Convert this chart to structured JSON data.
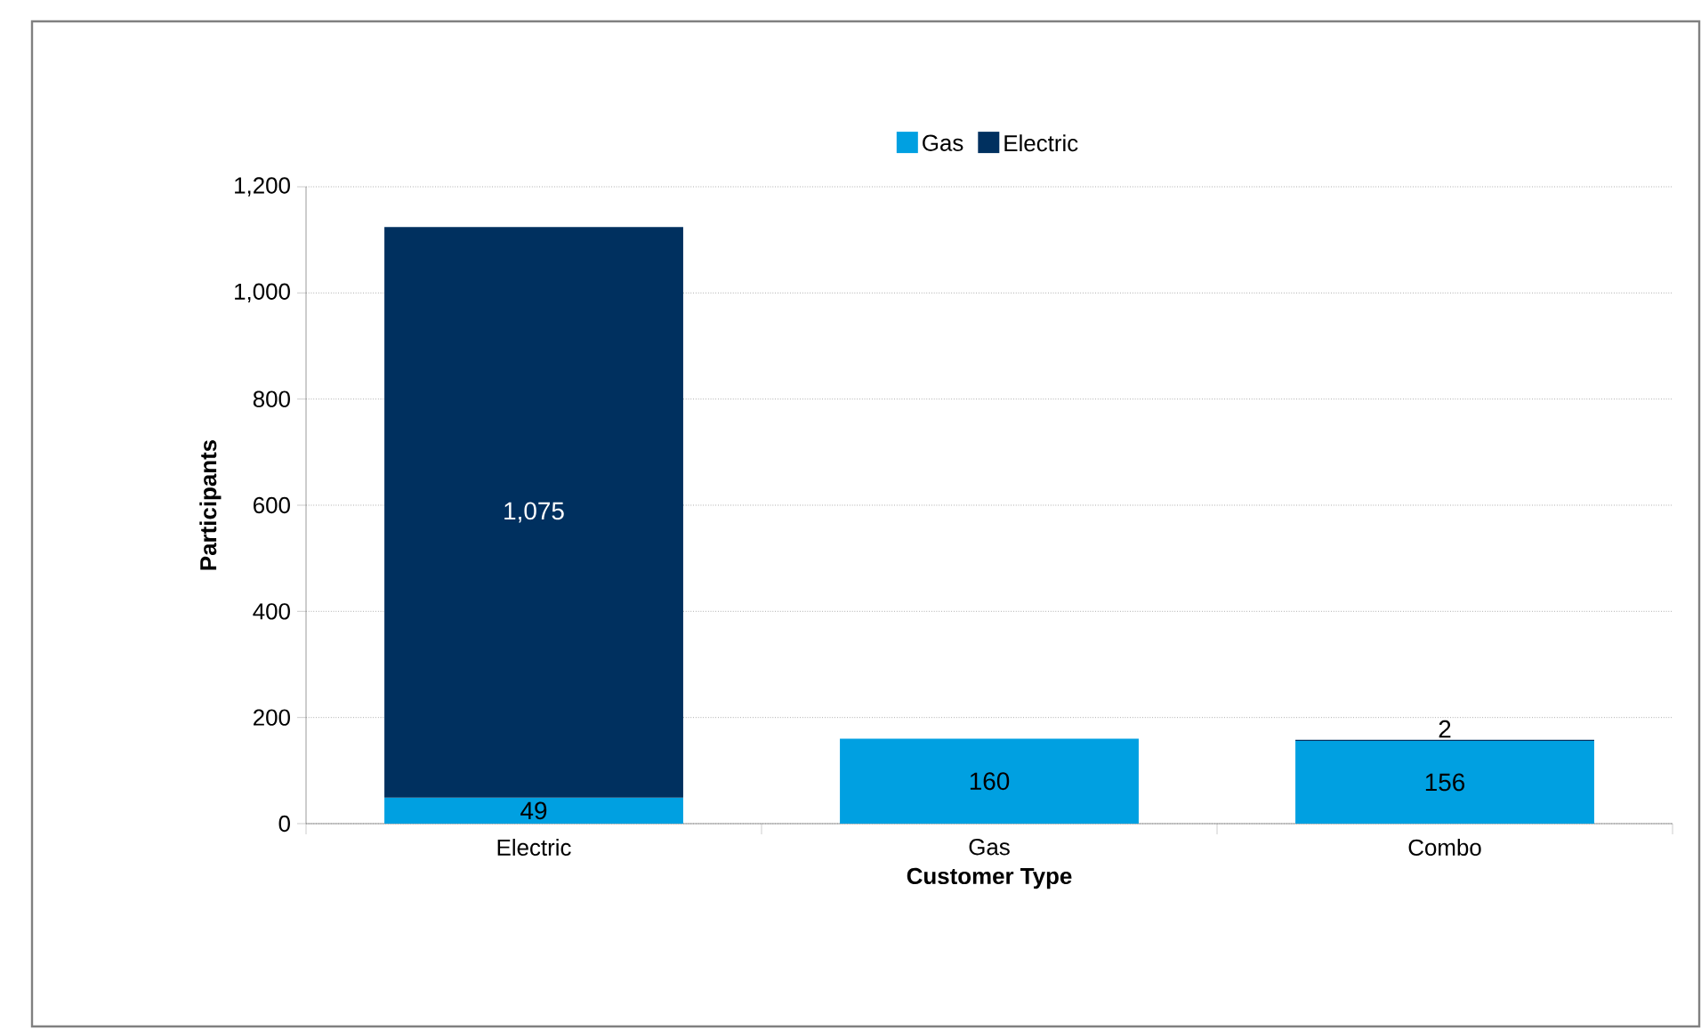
{
  "chart_data": {
    "type": "bar",
    "stacked": true,
    "xlabel": "Customer Type",
    "ylabel": "Participants",
    "categories": [
      "Electric",
      "Gas",
      "Combo"
    ],
    "series": [
      {
        "name": "Gas",
        "color": "#00a0e1",
        "values": [
          49,
          160,
          156
        ],
        "value_labels": [
          "49",
          "160",
          "156"
        ]
      },
      {
        "name": "Electric",
        "color": "#00305f",
        "values": [
          1075,
          null,
          2
        ],
        "value_labels": [
          "1,075",
          null,
          "2"
        ]
      }
    ],
    "ylim": [
      0,
      1200
    ],
    "yticks": [
      {
        "value": 0,
        "label": "0"
      },
      {
        "value": 200,
        "label": "200"
      },
      {
        "value": 400,
        "label": "400"
      },
      {
        "value": 600,
        "label": "600"
      },
      {
        "value": 800,
        "label": "800"
      },
      {
        "value": 1000,
        "label": "1,000"
      },
      {
        "value": 1200,
        "label": "1,200"
      }
    ],
    "grid": "y",
    "legend": "top"
  }
}
